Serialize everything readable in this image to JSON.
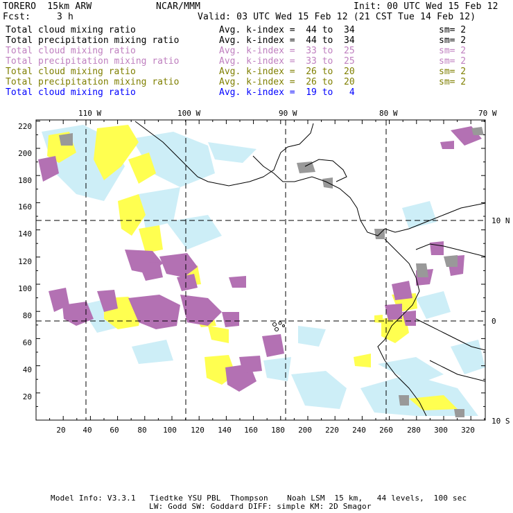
{
  "header": {
    "model": "TORERO  15km ARW",
    "center": "NCAR/MMM",
    "init": "Init: 00 UTC Wed 15 Feb 12",
    "fcst_label": "Fcst:",
    "fcst_value": "3 h",
    "valid": "Valid: 03 UTC Wed 15 Feb 12 (21 CST Tue 14 Feb 12)"
  },
  "legend": [
    {
      "field": "Total cloud mixing ratio",
      "kindex": "Avg. k-index =  44 to  34",
      "sm": "sm= 2",
      "color": "#000000"
    },
    {
      "field": "Total precipitation mixing ratio",
      "kindex": "Avg. k-index =  44 to  34",
      "sm": "sm= 2",
      "color": "#000000"
    },
    {
      "field": "Total cloud mixing ratio",
      "kindex": "Avg. k-index =  33 to  25",
      "sm": "sm= 2",
      "color": "#bf7fbf"
    },
    {
      "field": "Total precipitation mixing ratio",
      "kindex": "Avg. k-index =  33 to  25",
      "sm": "sm= 2",
      "color": "#bf7fbf"
    },
    {
      "field": "Total cloud mixing ratio",
      "kindex": "Avg. k-index =  26 to  20",
      "sm": "sm= 2",
      "color": "#7f7f00"
    },
    {
      "field": "Total precipitation mixing ratio",
      "kindex": "Avg. k-index =  26 to  20",
      "sm": "sm= 2",
      "color": "#7f7f00"
    },
    {
      "field": "Total cloud mixing ratio",
      "kindex": "Avg. k-index =  19 to   4",
      "sm": "",
      "color": "#0000ff"
    }
  ],
  "axes": {
    "lon_labels": [
      "110 W",
      "100 W",
      "90 W",
      "80 W",
      "70 W"
    ],
    "lat_labels": [
      "10 N",
      "0",
      "10 S"
    ],
    "x_ticks": [
      "20",
      "40",
      "60",
      "80",
      "100",
      "120",
      "140",
      "160",
      "180",
      "200",
      "220",
      "240",
      "260",
      "280",
      "300",
      "320"
    ],
    "y_ticks": [
      "220",
      "200",
      "180",
      "160",
      "140",
      "120",
      "100",
      "80",
      "60",
      "40",
      "20"
    ]
  },
  "colors": {
    "cloud_light_blue": "#cdeef7",
    "yellow": "#ffff50",
    "purple": "#b371b3",
    "gray": "#999999"
  },
  "footer": {
    "line1": "Model Info: V3.3.1   Tiedtke YSU PBL  Thompson    Noah LSM  15 km,   44 levels,  100 sec",
    "line2": "LW: Godd SW: Goddard DIFF: simple KM: 2D Smagor"
  }
}
